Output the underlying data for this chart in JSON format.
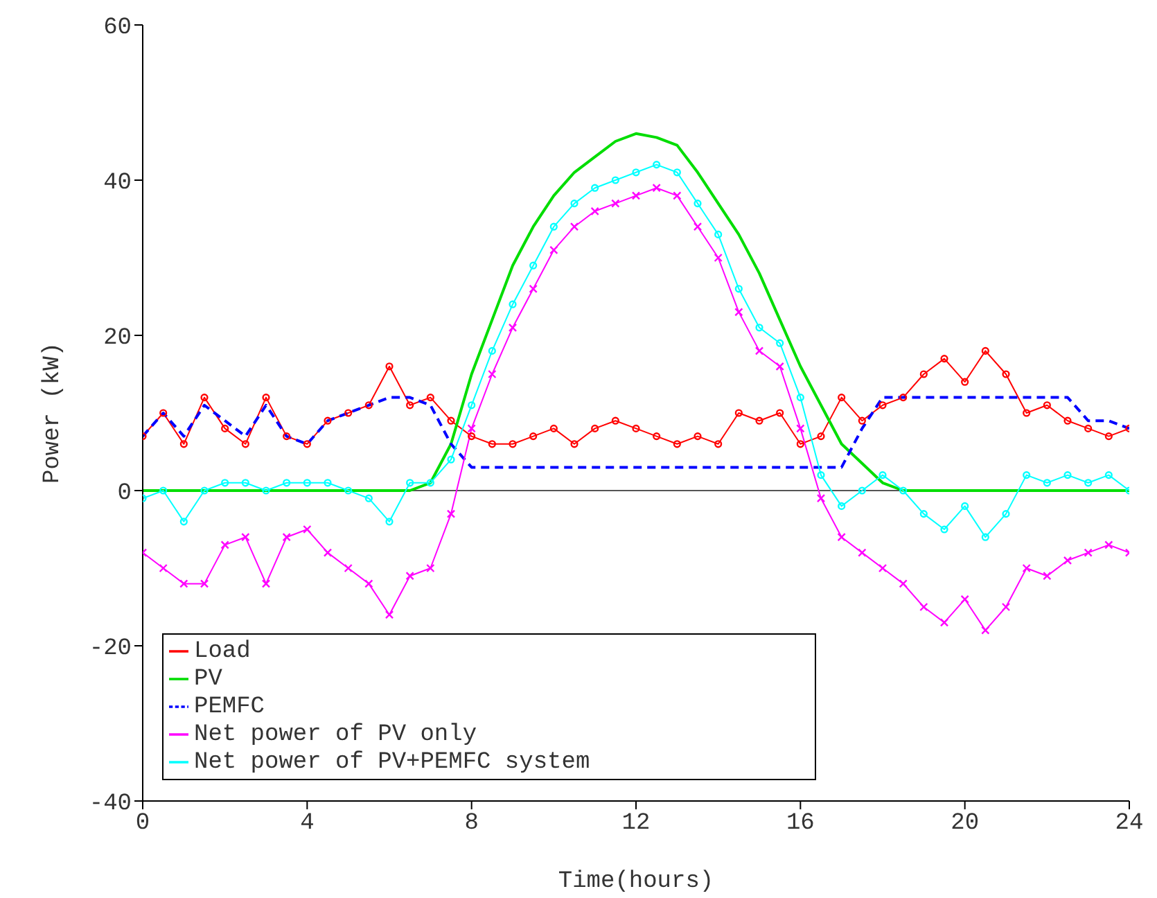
{
  "chart_data": {
    "type": "line",
    "xlabel": "Time(hours)",
    "ylabel": "Power (kW)",
    "x": [
      0,
      0.5,
      1,
      1.5,
      2,
      2.5,
      3,
      3.5,
      4,
      4.5,
      5,
      5.5,
      6,
      6.5,
      7,
      7.5,
      8,
      8.5,
      9,
      9.5,
      10,
      10.5,
      11,
      11.5,
      12,
      12.5,
      13,
      13.5,
      14,
      14.5,
      15,
      15.5,
      16,
      16.5,
      17,
      17.5,
      18,
      18.5,
      19,
      19.5,
      20,
      20.5,
      21,
      21.5,
      22,
      22.5,
      23,
      23.5,
      24
    ],
    "xlim": [
      0,
      24
    ],
    "xticks": [
      0,
      4,
      8,
      12,
      16,
      20,
      24
    ],
    "ylim": [
      -40,
      60
    ],
    "yticks": [
      -40,
      -20,
      0,
      20,
      40,
      60
    ],
    "grid": false,
    "legend": "bottom left",
    "ref_lines": [
      {
        "axis": "y",
        "value": 0,
        "color": "#555555"
      }
    ],
    "series": [
      {
        "name": "Load",
        "color": "#ff0000",
        "marker": "circle",
        "values": [
          7,
          10,
          6,
          12,
          8,
          6,
          12,
          7,
          6,
          9,
          10,
          11,
          16,
          11,
          12,
          9,
          7,
          6,
          6,
          7,
          8,
          6,
          8,
          9,
          8,
          7,
          6,
          7,
          6,
          10,
          9,
          10,
          6,
          7,
          12,
          9,
          11,
          12,
          15,
          17,
          14,
          18,
          15,
          10,
          11,
          9,
          8,
          7,
          8
        ]
      },
      {
        "name": "PV",
        "color": "#00dd00",
        "marker": "none",
        "values": [
          0,
          0,
          0,
          0,
          0,
          0,
          0,
          0,
          0,
          0,
          0,
          0,
          0,
          0,
          1,
          6,
          15,
          22,
          29,
          34,
          38,
          41,
          43,
          45,
          46,
          45.5,
          44.5,
          41,
          37,
          33,
          28,
          22,
          16,
          11,
          6,
          3.5,
          1,
          0,
          0,
          0,
          0,
          0,
          0,
          0,
          0,
          0,
          0,
          0,
          0
        ]
      },
      {
        "name": "PEMFC",
        "color": "#0000ff",
        "marker": "none",
        "line_style": "dashed",
        "values": [
          7,
          10,
          7,
          11,
          9,
          7,
          11,
          7,
          6,
          9,
          10,
          11,
          12,
          12,
          11,
          6,
          3,
          3,
          3,
          3,
          3,
          3,
          3,
          3,
          3,
          3,
          3,
          3,
          3,
          3,
          3,
          3,
          3,
          3,
          3,
          8,
          12,
          12,
          12,
          12,
          12,
          12,
          12,
          12,
          12,
          12,
          9,
          9,
          8
        ]
      },
      {
        "name": "Net power of PV only",
        "color": "#ff00ff",
        "marker": "cross",
        "values": [
          -8,
          -10,
          -12,
          -12,
          -7,
          -6,
          -12,
          -6,
          -5,
          -8,
          -10,
          -12,
          -16,
          -11,
          -10,
          -3,
          8,
          15,
          21,
          26,
          31,
          34,
          36,
          37,
          38,
          39,
          38,
          34,
          30,
          23,
          18,
          16,
          8,
          -1,
          -6,
          -8,
          -10,
          -12,
          -15,
          -17,
          -14,
          -18,
          -15,
          -10,
          -11,
          -9,
          -8,
          -7,
          -8
        ]
      },
      {
        "name": "Net power of PV+PEMFC system",
        "color": "#00ffff",
        "marker": "circle",
        "values": [
          -1,
          0,
          -4,
          0,
          1,
          1,
          0,
          1,
          1,
          1,
          0,
          -1,
          -4,
          1,
          1,
          4,
          11,
          18,
          24,
          29,
          34,
          37,
          39,
          40,
          41,
          42,
          41,
          37,
          33,
          26,
          21,
          19,
          12,
          2,
          -2,
          0,
          2,
          0,
          -3,
          -5,
          -2,
          -6,
          -3,
          2,
          1,
          2,
          1,
          2,
          0
        ]
      }
    ]
  }
}
